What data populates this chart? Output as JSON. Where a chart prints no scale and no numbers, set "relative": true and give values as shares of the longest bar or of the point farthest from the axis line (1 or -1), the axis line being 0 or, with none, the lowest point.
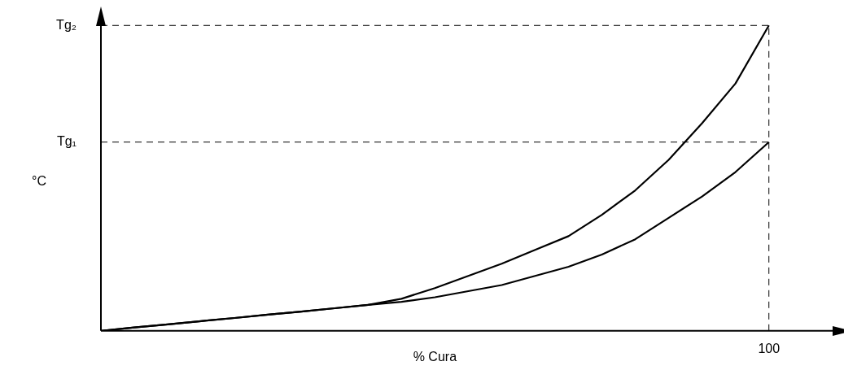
{
  "chart_data": {
    "type": "line",
    "xlabel": "% Cura",
    "ylabel": "°C",
    "relative": true,
    "legend": false,
    "marker": "none",
    "line_style": "solid",
    "categories": [
      null,
      null,
      null,
      null,
      null,
      null,
      null,
      null,
      null,
      null,
      null,
      null,
      null,
      null,
      null,
      null,
      null,
      null,
      null,
      null,
      null
    ],
    "series": [
      {
        "color": "#000000",
        "values": [
          0,
          0.011,
          0.021,
          0.032,
          0.042,
          0.053,
          0.063,
          0.074,
          0.085,
          0.105,
          0.14,
          0.18,
          0.22,
          0.265,
          0.31,
          0.38,
          0.46,
          0.56,
          0.68,
          0.81,
          1
        ]
      },
      {
        "color": "#000000",
        "values": [
          0,
          0.011,
          0.021,
          0.032,
          0.042,
          0.053,
          0.063,
          0.074,
          0.085,
          0.095,
          0.11,
          0.13,
          0.15,
          0.18,
          0.21,
          0.25,
          0.3,
          0.37,
          0.44,
          0.52,
          0.618
        ]
      }
    ],
    "ref_lines": [
      {
        "axis": "y",
        "value": 1,
        "label": "Tg₂",
        "line_style": "dashed"
      },
      {
        "axis": "y",
        "value": 0.618,
        "label": "Tg₁",
        "line_style": "dashed"
      },
      {
        "axis": "x",
        "label": "100",
        "line_style": "dashed"
      }
    ]
  }
}
